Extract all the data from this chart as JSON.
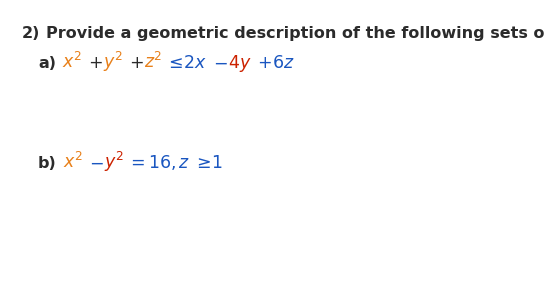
{
  "background_color": "#ffffff",
  "fig_width": 5.44,
  "fig_height": 2.91,
  "dpi": 100,
  "black": "#2b2b2b",
  "orange": "#E8801A",
  "red": "#CC2200",
  "blue": "#1A56C0",
  "q_number": "2)",
  "q_text": "Provide a geometric description of the following sets of points:",
  "label_a": "a)",
  "label_b": "b)",
  "q_fontsize": 11.5,
  "eq_fontsize": 12.5
}
